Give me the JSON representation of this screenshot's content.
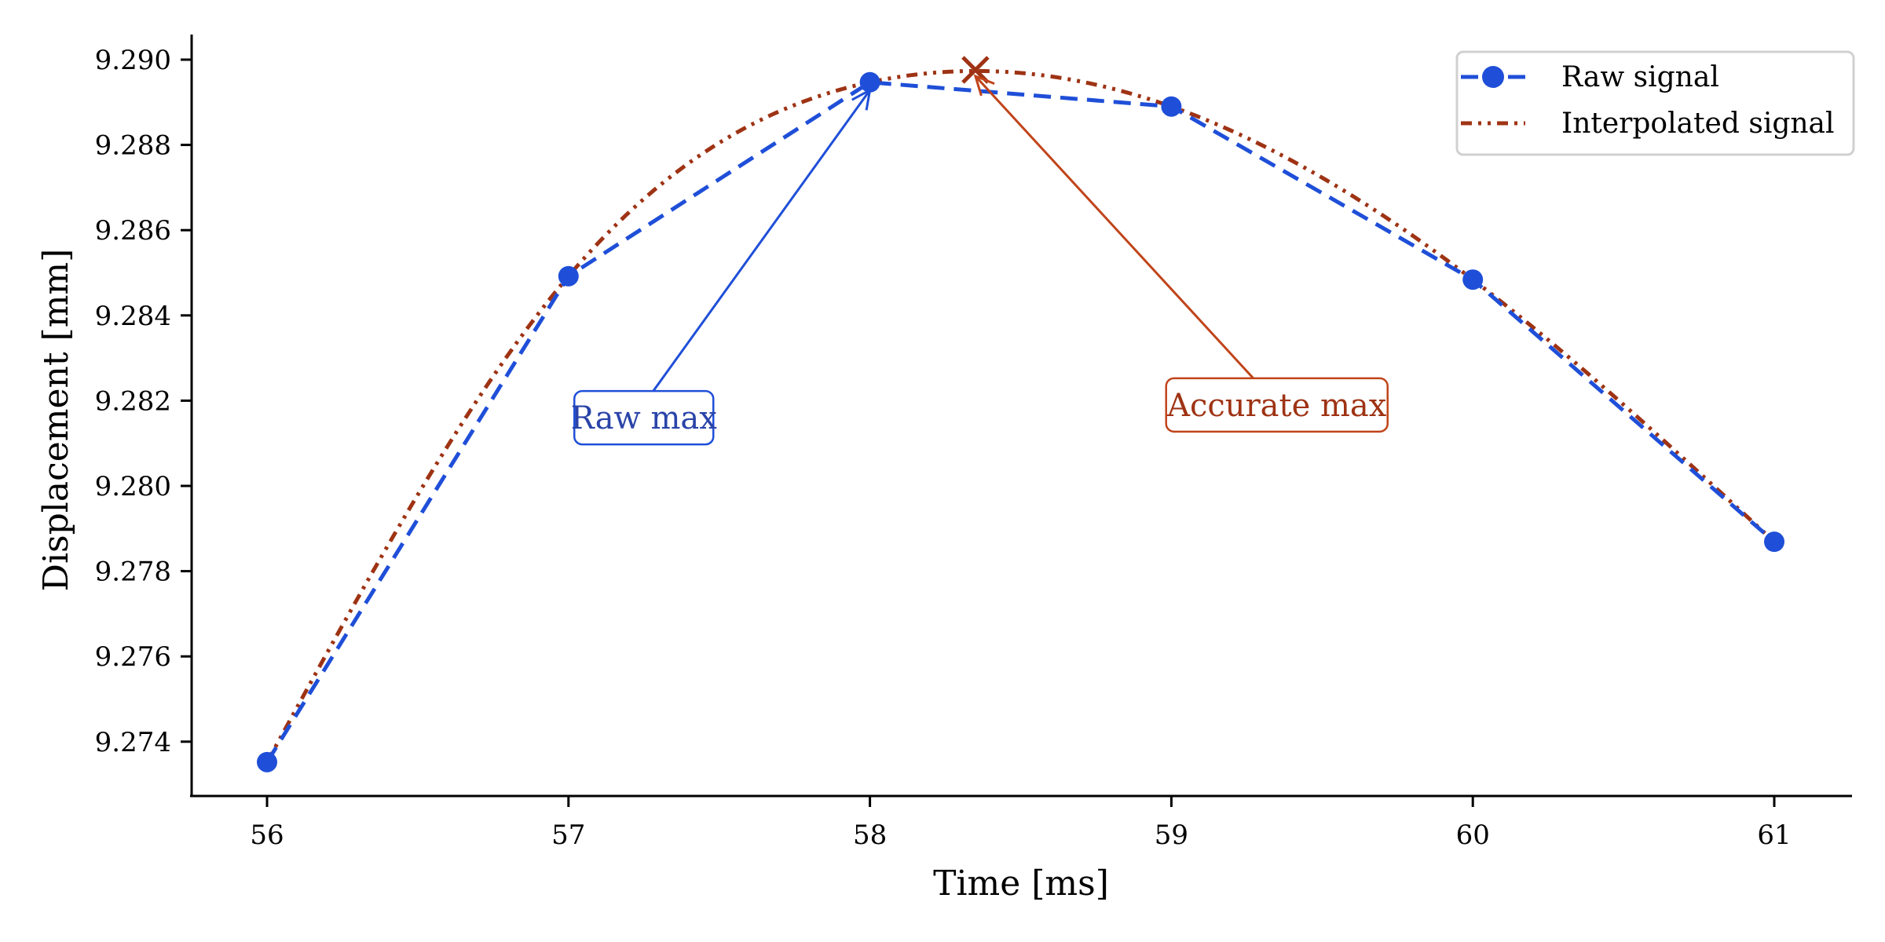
{
  "chart_data": {
    "type": "line",
    "title": "",
    "xlabel": "Time [ms]",
    "ylabel": "Displacement [mm]",
    "xlim": [
      55.75,
      61.25
    ],
    "ylim": [
      9.2732,
      9.2906
    ],
    "xticks": [
      56,
      57,
      58,
      59,
      60,
      61
    ],
    "xtick_labels": [
      "56",
      "57",
      "58",
      "59",
      "60",
      "61"
    ],
    "yticks": [
      9.274,
      9.276,
      9.278,
      9.28,
      9.282,
      9.284,
      9.286,
      9.288,
      9.29
    ],
    "ytick_labels": [
      "9.274",
      "9.276",
      "9.278",
      "9.280",
      "9.282",
      "9.284",
      "9.286",
      "9.288",
      "9.290"
    ],
    "grid": false,
    "legend_position": "top-right",
    "x": [
      56,
      57,
      58,
      59,
      60,
      61
    ],
    "series": [
      {
        "name": "Raw signal",
        "style": "dashed-with-markers",
        "color": "#1f4fd8",
        "values": [
          9.27352,
          9.28492,
          9.28947,
          9.2889,
          9.28484,
          9.27869
        ]
      },
      {
        "name": "Interpolated signal",
        "style": "dash-dot-dot",
        "color": "#9e3314",
        "interpolation": "cubic-spline",
        "values": [
          9.27352,
          9.28492,
          9.28947,
          9.2889,
          9.28484,
          9.27869
        ]
      }
    ],
    "markers": [
      {
        "name": "interpolated-max",
        "shape": "x",
        "x": 58.35,
        "y": 9.28976,
        "color": "#9e3314"
      }
    ],
    "annotations": [
      {
        "text": "Raw max",
        "target_x": 58.0,
        "target_y": 9.28947,
        "text_x": 57.25,
        "text_y": 9.2816,
        "color": "#1f4fd8",
        "text_color": "#2a44a8"
      },
      {
        "text": "Accurate max",
        "target_x": 58.35,
        "target_y": 9.28976,
        "text_x": 59.35,
        "text_y": 9.2819,
        "color": "#c0441a",
        "text_color": "#9e3314"
      }
    ]
  }
}
